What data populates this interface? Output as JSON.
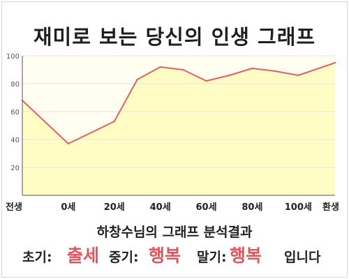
{
  "title": "재미로 보는 당신의 인생 그래프",
  "chart_data": {
    "type": "area",
    "x_categories": [
      "전생",
      "0세",
      "20세",
      "40세",
      "60세",
      "80세",
      "100세",
      "환생"
    ],
    "x": [
      -20,
      0,
      20,
      30,
      40,
      50,
      60,
      70,
      80,
      90,
      100,
      116
    ],
    "values": [
      68,
      37,
      53,
      83,
      92,
      90,
      82,
      86,
      91,
      89,
      86,
      95
    ],
    "ylim": [
      0,
      100
    ],
    "yticks": [
      20,
      40,
      60,
      80,
      100
    ],
    "grid": true,
    "line_color": "#e0606a",
    "fill_color": "#fffcc4"
  },
  "result": {
    "heading": "하창수님의 그래프 분석결과",
    "early_label": "초기:",
    "early_value": "출세",
    "mid_label": "중기:",
    "mid_value": "행복",
    "late_label": "말기:",
    "late_value": "행복",
    "ending": "입니다"
  },
  "colors": {
    "highlight": "#e0565f",
    "plot_background": "#fffef0"
  }
}
